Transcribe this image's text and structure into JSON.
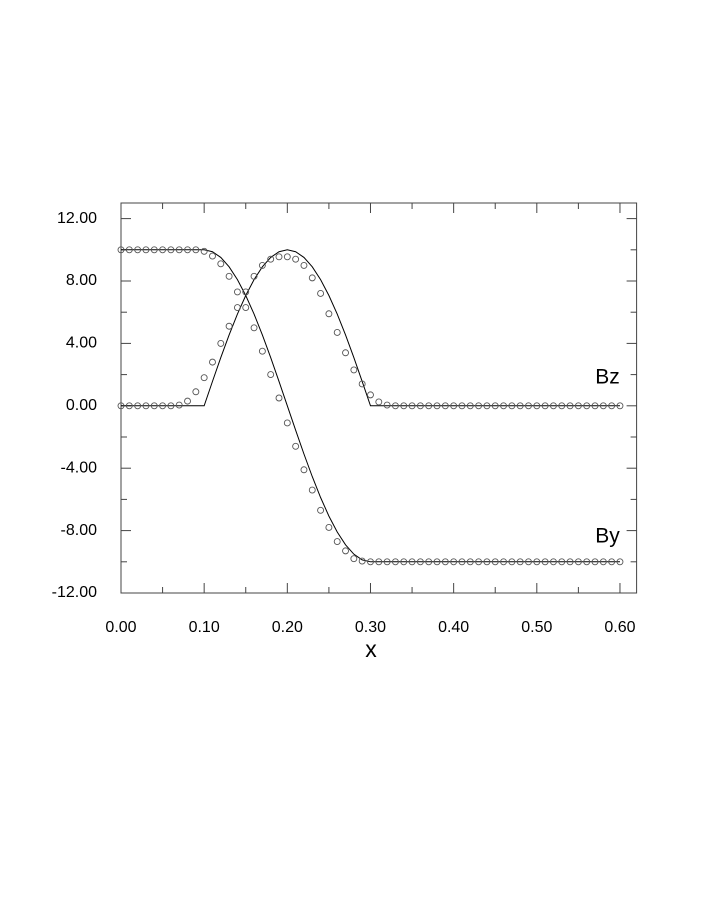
{
  "chart_data": {
    "type": "line",
    "xlabel": "x",
    "x": [
      0,
      0.01,
      0.02,
      0.03,
      0.04,
      0.05,
      0.06,
      0.07,
      0.08,
      0.09,
      0.1,
      0.11,
      0.12,
      0.13,
      0.14,
      0.15,
      0.16,
      0.17,
      0.18,
      0.19,
      0.2,
      0.21,
      0.22,
      0.23,
      0.24,
      0.25,
      0.26,
      0.27,
      0.28,
      0.29,
      0.3,
      0.31,
      0.32,
      0.33,
      0.34,
      0.35,
      0.36,
      0.37,
      0.38,
      0.39,
      0.4,
      0.41,
      0.42,
      0.43,
      0.44,
      0.45,
      0.46,
      0.47,
      0.48,
      0.49,
      0.5,
      0.51,
      0.52,
      0.53,
      0.54,
      0.55,
      0.56,
      0.57,
      0.58,
      0.59,
      0.6
    ],
    "series": [
      {
        "style": "line",
        "color": "#000000",
        "values": [
          10,
          10,
          10,
          10,
          10,
          10,
          10,
          10,
          10,
          10,
          10,
          9.877,
          9.511,
          8.91,
          8.09,
          7.071,
          5.878,
          4.54,
          3.09,
          1.564,
          0,
          -1.564,
          -3.09,
          -4.54,
          -5.878,
          -7.071,
          -8.09,
          -8.91,
          -9.511,
          -9.877,
          -10,
          -10,
          -10,
          -10,
          -10,
          -10,
          -10,
          -10,
          -10,
          -10,
          -10,
          -10,
          -10,
          -10,
          -10,
          -10,
          -10,
          -10,
          -10,
          -10,
          -10,
          -10,
          -10,
          -10,
          -10,
          -10,
          -10,
          -10,
          -10,
          -10,
          -10
        ]
      },
      {
        "style": "line",
        "color": "#000000",
        "values": [
          0,
          0,
          0,
          0,
          0,
          0,
          0,
          0,
          0,
          0,
          0,
          1.564,
          3.09,
          4.54,
          5.878,
          7.071,
          8.09,
          8.91,
          9.511,
          9.877,
          10,
          9.877,
          9.511,
          8.91,
          8.09,
          7.071,
          5.878,
          4.54,
          3.09,
          1.564,
          0,
          0,
          0,
          0,
          0,
          0,
          0,
          0,
          0,
          0,
          0,
          0,
          0,
          0,
          0,
          0,
          0,
          0,
          0,
          0,
          0,
          0,
          0,
          0,
          0,
          0,
          0,
          0,
          0,
          0,
          0
        ]
      },
      {
        "style": "markers",
        "color": "#555555",
        "values": [
          10,
          10,
          10,
          10,
          10,
          10,
          10,
          10,
          10,
          10,
          9.9,
          9.6,
          9.1,
          8.3,
          7.3,
          6.3,
          5.0,
          3.5,
          2.0,
          0.5,
          -1.1,
          -2.6,
          -4.1,
          -5.4,
          -6.7,
          -7.8,
          -8.7,
          -9.3,
          -9.8,
          -9.95,
          -10,
          -10,
          -10,
          -10,
          -10,
          -10,
          -10,
          -10,
          -10,
          -10,
          -10,
          -10,
          -10,
          -10,
          -10,
          -10,
          -10,
          -10,
          -10,
          -10,
          -10,
          -10,
          -10,
          -10,
          -10,
          -10,
          -10,
          -10,
          -10,
          -10,
          -10
        ]
      },
      {
        "style": "markers",
        "color": "#555555",
        "values": [
          0,
          0,
          0,
          0,
          0,
          0,
          0,
          0.05,
          0.3,
          0.9,
          1.8,
          2.8,
          4.0,
          5.1,
          6.3,
          7.3,
          8.3,
          9.0,
          9.4,
          9.55,
          9.55,
          9.4,
          9.0,
          8.2,
          7.2,
          5.9,
          4.7,
          3.4,
          2.3,
          1.4,
          0.7,
          0.25,
          0.05,
          0,
          0,
          0,
          0,
          0,
          0,
          0,
          0,
          0,
          0,
          0,
          0,
          0,
          0,
          0,
          0,
          0,
          0,
          0,
          0,
          0,
          0,
          0,
          0,
          0,
          0,
          0,
          0
        ]
      }
    ],
    "annotations": [
      {
        "text": "Bz",
        "x": 0.585,
        "y": 1.8
      },
      {
        "text": "By",
        "x": 0.585,
        "y": -8.4
      }
    ],
    "xlim": [
      0,
      0.62
    ],
    "ylim": [
      -12,
      13
    ],
    "xticks": [
      {
        "value": 0,
        "label": "0.00"
      },
      {
        "value": 0.1,
        "label": "0.10"
      },
      {
        "value": 0.2,
        "label": "0.20"
      },
      {
        "value": 0.3,
        "label": "0.30"
      },
      {
        "value": 0.4,
        "label": "0.40"
      },
      {
        "value": 0.5,
        "label": "0.50"
      },
      {
        "value": 0.6,
        "label": "0.60"
      }
    ],
    "yticks": [
      {
        "value": -12,
        "label": "-12.00"
      },
      {
        "value": -8,
        "label": "-8.00"
      },
      {
        "value": -4,
        "label": "-4.00"
      },
      {
        "value": 0,
        "label": "0.00"
      },
      {
        "value": 4,
        "label": "4.00"
      },
      {
        "value": 8,
        "label": "8.00"
      },
      {
        "value": 12,
        "label": "12.00"
      }
    ],
    "xminorticks": [
      0.05,
      0.15,
      0.25,
      0.35,
      0.45,
      0.55
    ],
    "yminorticks": [
      -10,
      -6,
      -2,
      2,
      6,
      10
    ],
    "grid": false
  }
}
